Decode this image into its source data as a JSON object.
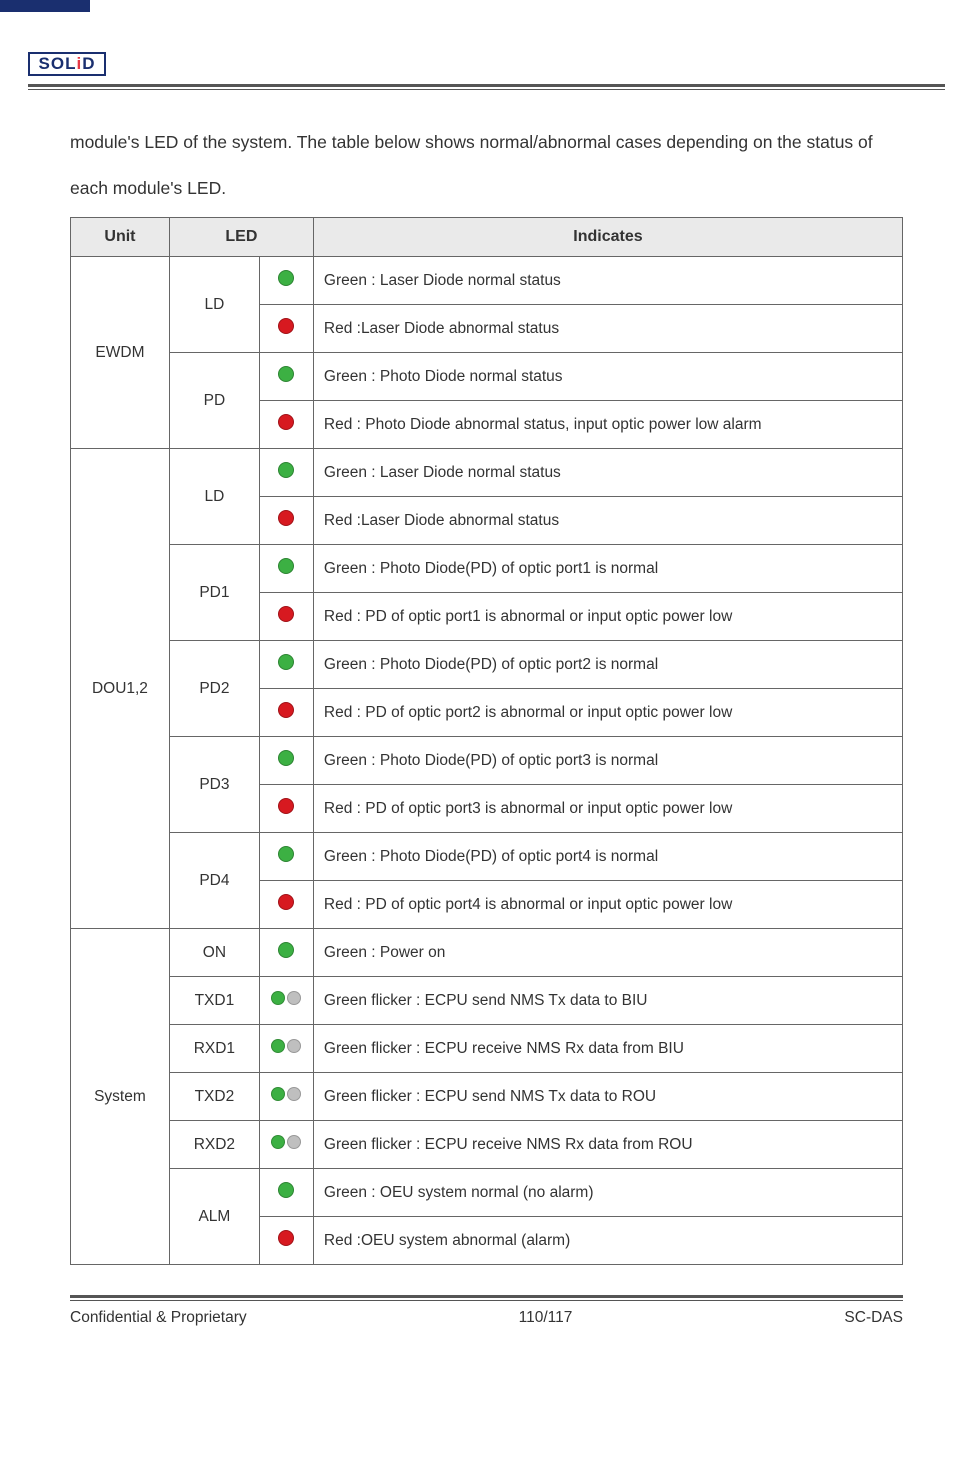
{
  "colors": {
    "green": "#3cb043",
    "red": "#d71920",
    "gray": "#bfbfbf",
    "header_bg": "#eaeaea",
    "border": "#666666",
    "brand_blue": "#1a2f6f"
  },
  "logo": {
    "text_html": "SOL<span class='dot'>i</span>D"
  },
  "intro": "module's LED of the system. The table below shows normal/abnormal cases depending on the status of each module's LED.",
  "table": {
    "headers": {
      "unit": "Unit",
      "led": "LED",
      "indicates": "Indicates"
    },
    "rows": [
      {
        "unit": "EWDM",
        "led": "LD",
        "color": "green",
        "text": "Green : Laser Diode normal status"
      },
      {
        "unit": "EWDM",
        "led": "LD",
        "color": "red",
        "text": "Red :Laser Diode abnormal status"
      },
      {
        "unit": "EWDM",
        "led": "PD",
        "color": "green",
        "text": "Green :    Photo Diode normal status"
      },
      {
        "unit": "EWDM",
        "led": "PD",
        "color": "red",
        "text": "Red : Photo Diode abnormal status, input optic power low alarm"
      },
      {
        "unit": "DOU1,2",
        "led": "LD",
        "color": "green",
        "text": "Green : Laser Diode normal status"
      },
      {
        "unit": "DOU1,2",
        "led": "LD",
        "color": "red",
        "text": "Red :Laser Diode abnormal status"
      },
      {
        "unit": "DOU1,2",
        "led": "PD1",
        "color": "green",
        "text": "Green :    Photo Diode(PD) of optic port1 is normal"
      },
      {
        "unit": "DOU1,2",
        "led": "PD1",
        "color": "red",
        "text": "Red : PD of optic port1 is abnormal or input optic power low"
      },
      {
        "unit": "DOU1,2",
        "led": "PD2",
        "color": "green",
        "text": "Green :    Photo Diode(PD) of optic port2 is normal"
      },
      {
        "unit": "DOU1,2",
        "led": "PD2",
        "color": "red",
        "text": "Red : PD of optic port2 is abnormal or input optic power low"
      },
      {
        "unit": "DOU1,2",
        "led": "PD3",
        "color": "green",
        "text": "Green :    Photo Diode(PD) of optic port3 is normal"
      },
      {
        "unit": "DOU1,2",
        "led": "PD3",
        "color": "red",
        "text": "Red : PD of optic port3 is abnormal or input optic power low"
      },
      {
        "unit": "DOU1,2",
        "led": "PD4",
        "color": "green",
        "text": "Green :    Photo Diode(PD) of optic port4 is normal"
      },
      {
        "unit": "DOU1,2",
        "led": "PD4",
        "color": "red",
        "text": "Red : PD of optic port4 is abnormal or input optic power low"
      },
      {
        "unit": "System",
        "led": "ON",
        "color": "green",
        "text": "Green : Power on"
      },
      {
        "unit": "System",
        "led": "TXD1",
        "color": "flicker",
        "text": "Green flicker : ECPU send NMS Tx data to BIU"
      },
      {
        "unit": "System",
        "led": "RXD1",
        "color": "flicker",
        "text": "Green flicker : ECPU receive NMS Rx data from BIU"
      },
      {
        "unit": "System",
        "led": "TXD2",
        "color": "flicker",
        "text": "Green flicker : ECPU send NMS Tx data to ROU"
      },
      {
        "unit": "System",
        "led": "RXD2",
        "color": "flicker",
        "text": "Green flicker : ECPU receive NMS Rx data from ROU"
      },
      {
        "unit": "System",
        "led": "ALM",
        "color": "green",
        "text": "Green : OEU system normal (no alarm)"
      },
      {
        "unit": "System",
        "led": "ALM",
        "color": "red",
        "text": "Red :OEU system abnormal (alarm)"
      }
    ]
  },
  "footer": {
    "left": "Confidential & Proprietary",
    "center": "110/117",
    "right": "SC-DAS"
  }
}
